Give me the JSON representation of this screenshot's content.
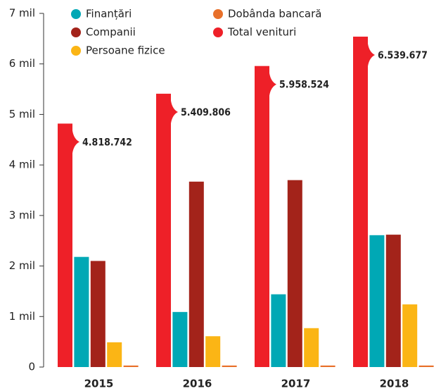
{
  "chart_data": {
    "type": "bar",
    "categories": [
      "2015",
      "2016",
      "2017",
      "2018"
    ],
    "series": [
      {
        "name": "Total venituri",
        "color": "#ee2028",
        "values": [
          4818742,
          5409806,
          5958524,
          6539677
        ],
        "value_labels": [
          "4.818.742",
          "5.409.806",
          "5.958.524",
          "6.539.677"
        ]
      },
      {
        "name": "Finanțări",
        "color": "#00a8b5",
        "values": [
          2180000,
          1090000,
          1440000,
          2610000
        ]
      },
      {
        "name": "Companii",
        "color": "#a3231a",
        "values": [
          2100000,
          3670000,
          3700000,
          2620000
        ]
      },
      {
        "name": "Persoane fizice",
        "color": "#fbb515",
        "values": [
          490000,
          610000,
          770000,
          1240000
        ]
      },
      {
        "name": "Dobânda bancară",
        "color": "#e8702a",
        "values": [
          30000,
          30000,
          30000,
          30000
        ]
      }
    ],
    "ylim": [
      0,
      7000000
    ],
    "yticks": [
      0,
      {
        "value": 1000000,
        "label": "1 mil"
      },
      {
        "value": 2000000,
        "label": "2 mil"
      },
      {
        "value": 3000000,
        "label": "3 mil"
      },
      {
        "value": 4000000,
        "label": "4 mil"
      },
      {
        "value": 5000000,
        "label": "5 mil"
      },
      {
        "value": 6000000,
        "label": "6 mil"
      },
      {
        "value": 7000000,
        "label": "7 mil"
      }
    ]
  }
}
